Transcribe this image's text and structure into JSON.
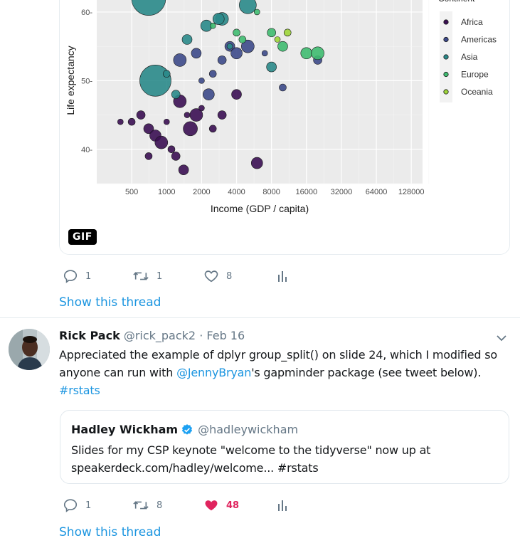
{
  "chart": {
    "ylabel": "Life expectancy",
    "xlabel": "Income (GDP / capita)",
    "yticks": [
      "60",
      "50",
      "40"
    ],
    "xticks": [
      "500",
      "1000",
      "2000",
      "4000",
      "8000",
      "16000",
      "32000",
      "64000",
      "128000"
    ],
    "legend_title": "Continent",
    "legend": [
      "Africa",
      "Americas",
      "Asia",
      "Europe",
      "Oceania"
    ]
  },
  "chart_data": {
    "type": "scatter",
    "xlabel": "Income (GDP / capita)",
    "ylabel": "Life expectancy",
    "x_scale": "log2",
    "xlim": [
      250,
      160000
    ],
    "ylim": [
      35,
      63
    ],
    "series": [
      {
        "name": "Africa",
        "points": [
          [
            400,
            44
          ],
          [
            500,
            44
          ],
          [
            600,
            45
          ],
          [
            700,
            43
          ],
          [
            800,
            42
          ],
          [
            900,
            41
          ],
          [
            1000,
            44
          ],
          [
            1100,
            40
          ],
          [
            1200,
            39
          ],
          [
            1400,
            37
          ],
          [
            1600,
            43
          ],
          [
            1800,
            45
          ],
          [
            2000,
            46
          ],
          [
            2500,
            43
          ],
          [
            3000,
            45
          ],
          [
            4000,
            48
          ],
          [
            6000,
            38
          ],
          [
            1300,
            47
          ],
          [
            1500,
            45
          ],
          [
            700,
            39
          ]
        ]
      },
      {
        "name": "Americas",
        "points": [
          [
            2000,
            50
          ],
          [
            2500,
            51
          ],
          [
            3000,
            53
          ],
          [
            3500,
            55
          ],
          [
            4000,
            54
          ],
          [
            5000,
            55
          ],
          [
            7000,
            54
          ],
          [
            10000,
            49
          ],
          [
            20000,
            53
          ],
          [
            1800,
            54
          ],
          [
            2300,
            48
          ],
          [
            1300,
            53
          ]
        ]
      },
      {
        "name": "Asia",
        "points": [
          [
            800,
            50
          ],
          [
            1000,
            51
          ],
          [
            1200,
            48
          ],
          [
            1500,
            56
          ],
          [
            2200,
            58
          ],
          [
            3000,
            59
          ],
          [
            3500,
            55
          ],
          [
            5000,
            61
          ],
          [
            700,
            62
          ],
          [
            8000,
            52
          ],
          [
            2800,
            59
          ]
        ]
      },
      {
        "name": "Europe",
        "points": [
          [
            2500,
            58
          ],
          [
            4000,
            57
          ],
          [
            8000,
            57
          ],
          [
            10000,
            55
          ],
          [
            16000,
            54
          ],
          [
            20000,
            54
          ],
          [
            6000,
            60
          ],
          [
            4500,
            56
          ]
        ]
      },
      {
        "name": "Oceania",
        "points": [
          [
            9000,
            56
          ],
          [
            11000,
            57
          ]
        ]
      }
    ]
  },
  "tweet1": {
    "reply_count": "1",
    "retweet_count": "1",
    "like_count": "8",
    "show_thread": "Show this thread"
  },
  "tweet2": {
    "name": "Rick Pack",
    "handle": "@rick_pack2",
    "sep": "·",
    "date": "Feb 16",
    "text_1": "Appreciated the example of dplyr group_split() on slide 24, which I modified so",
    "text_2a": "anyone can run with ",
    "mention": "@JennyBryan",
    "text_2b": "'s gapminder package (see tweet below).",
    "hashtag": "#rstats",
    "quote": {
      "name": "Hadley Wickham",
      "handle": "@hadleywickham",
      "line1": "Slides for my CSP keynote \"welcome to the tidyverse\" now up at",
      "line2": "speakerdeck.com/hadley/welcome... #rstats"
    },
    "reply_count": "1",
    "retweet_count": "8",
    "like_count": "48",
    "show_thread": "Show this thread"
  },
  "gif_badge": "GIF",
  "colors": {
    "accent": "#1b95e0",
    "like": "#e0245e",
    "muted": "#657786"
  }
}
